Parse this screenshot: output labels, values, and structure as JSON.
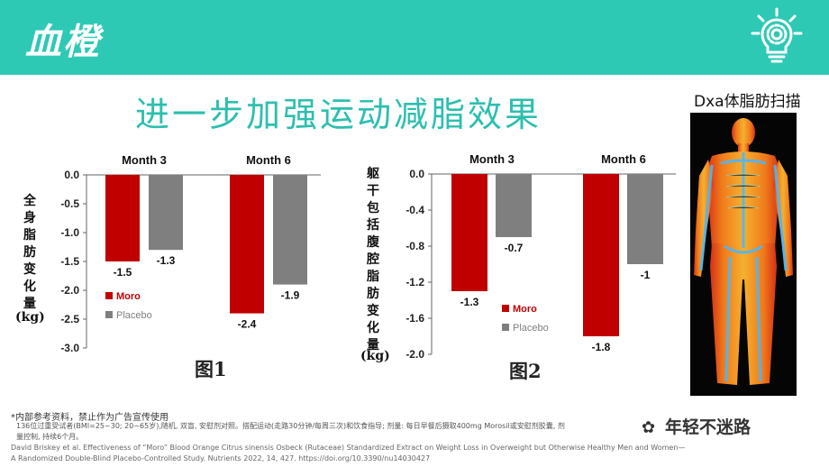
{
  "header": {
    "title": "血橙"
  },
  "main_title": "进一步加强运动减脂效果",
  "scan_caption": "Dxa体脂肪扫描",
  "fig1_label": "图1",
  "fig2_label": "图2",
  "chart_data": [
    {
      "type": "bar",
      "categories": [
        "Month 3",
        "Month 6"
      ],
      "series": [
        {
          "name": "Moro",
          "color": "#c00000",
          "values": [
            -1.5,
            -2.4
          ]
        },
        {
          "name": "Placebo",
          "color": "#7f7f7f",
          "values": [
            -1.3,
            -1.9
          ]
        }
      ],
      "value_labels": [
        [
          "-1.5",
          "-2.4"
        ],
        [
          "-1.3",
          "-1.9"
        ]
      ],
      "ylabel_chars": [
        "全",
        "身",
        "脂",
        "肪",
        "变",
        "化",
        "量"
      ],
      "ylabel_unit": "(kg)",
      "ylim": [
        -3.0,
        0.0
      ],
      "yticks": [
        "0.0",
        "-0.5",
        "-1.0",
        "-1.5",
        "-2.0",
        "-2.5",
        "-3.0"
      ],
      "legend": "lower-left"
    },
    {
      "type": "bar",
      "categories": [
        "Month 3",
        "Month 6"
      ],
      "series": [
        {
          "name": "Moro",
          "color": "#c00000",
          "values": [
            -1.3,
            -1.8
          ]
        },
        {
          "name": "Placebo",
          "color": "#7f7f7f",
          "values": [
            -0.7,
            -1.0
          ]
        }
      ],
      "value_labels": [
        [
          "-1.3",
          "-1.8"
        ],
        [
          "-0.7",
          "-1"
        ]
      ],
      "ylabel_chars": [
        "躯",
        "干",
        "包",
        "括",
        "腹",
        "腔",
        "脂",
        "肪",
        "变",
        "化",
        "量"
      ],
      "ylabel_unit": "(kg)",
      "ylim": [
        -2.0,
        0.0
      ],
      "yticks": [
        "0.0",
        "-0.4",
        "-0.8",
        "-1.2",
        "-1.6",
        "-2.0"
      ],
      "legend": "center"
    }
  ],
  "footnotes": {
    "note1": "*内部参考资料，禁止作为广告宣传使用",
    "note2": "136位过重受试者(BMI=25~30; 20~65岁),随机, 双盲, 安慰剂对照。搭配运动(走路30分钟/每周三次)和饮食指导; 剂量: 每日早餐后摄取400mg Morosil或安慰剂胶囊, 剂",
    "note3": "量控制, 持续6个月。",
    "ref1": "David Briskey et al. Effectiveness of “Moro” Blood Orange Citrus sinensis Osbeck (Rutaceae) Standardized Extract on Weight Loss in Overweight but Otherwise Healthy Men and Women—",
    "ref2": "A Randomized Double-Blind Placebo-Controlled Study. Nutrients 2022, 14, 427. https://doi.org/10.3390/nu14030427"
  },
  "watermark": "年轻不迷路",
  "colors": {
    "accent": "#2ec9b5",
    "title": "#2cbfae",
    "moro": "#c00000",
    "placebo": "#7f7f7f"
  }
}
